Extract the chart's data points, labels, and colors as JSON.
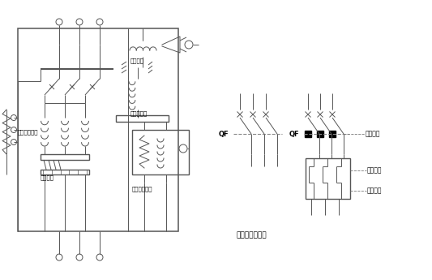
{
  "bg_color": "#ffffff",
  "line_color": "#555555",
  "title_bottom": "断路器图形符号",
  "label_qf1": "QF",
  "label_qf2": "QF",
  "label_1": "失压保护",
  "label_2": "过载保护",
  "label_3": "过载保护",
  "label_left1": "过电流脱扣器",
  "label_left2": "热脱扣器",
  "label_center1": "欠控装置",
  "label_center2": "分励脱扣器",
  "label_bottom": "失电压脱扣器"
}
